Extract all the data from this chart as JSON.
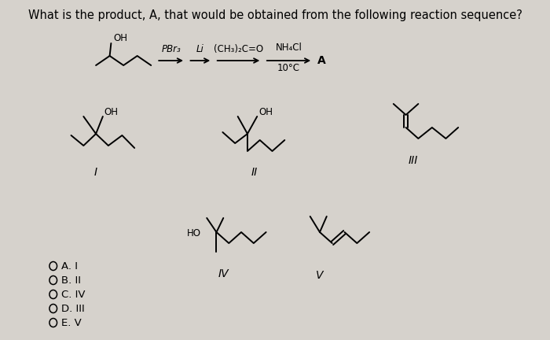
{
  "title": "What is the product, A, that would be obtained from the following reaction sequence?",
  "title_fontsize": 10.5,
  "bg_color": "#d6d2cc",
  "text_color": "#000000",
  "reagent1": "PBr₃",
  "reagent2": "Li",
  "reagent3": "(CH₃)₂C=O",
  "reagent4": "NH₄Cl",
  "reagent4b": "10°C",
  "product_label": "A",
  "choices": [
    "A. I",
    "B. II",
    "C. IV",
    "D. III",
    "E. V"
  ],
  "roman_I": "I",
  "roman_II": "II",
  "roman_III": "III",
  "roman_IV": "IV",
  "roman_V": "V",
  "lw": 1.4
}
